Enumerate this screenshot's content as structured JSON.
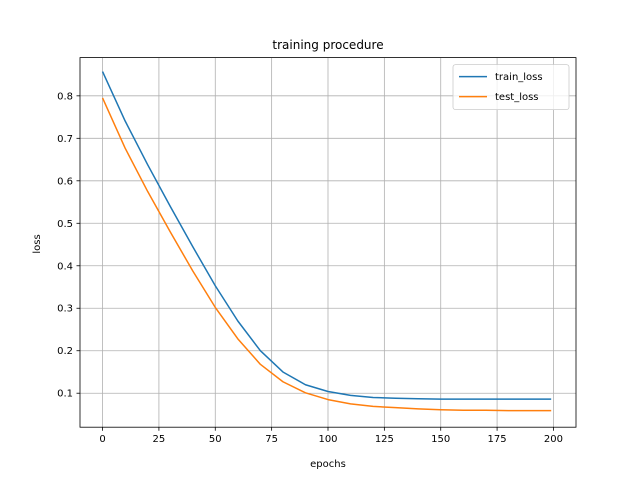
{
  "chart_data": {
    "type": "line",
    "title": "training procedure",
    "xlabel": "epochs",
    "ylabel": "loss",
    "xlim": [
      -10,
      210
    ],
    "ylim": [
      0.02,
      0.89
    ],
    "x_ticks": [
      0,
      25,
      50,
      75,
      100,
      125,
      150,
      175,
      200
    ],
    "y_ticks": [
      0.1,
      0.2,
      0.3,
      0.4,
      0.5,
      0.6,
      0.7,
      0.8
    ],
    "grid": true,
    "legend": "top-right",
    "x": [
      0,
      10,
      20,
      30,
      40,
      50,
      60,
      70,
      80,
      90,
      100,
      110,
      120,
      130,
      140,
      150,
      160,
      170,
      180,
      190,
      199
    ],
    "series": [
      {
        "name": "train_loss",
        "color": "#1f77b4",
        "values": [
          0.857,
          0.741,
          0.638,
          0.54,
          0.445,
          0.353,
          0.27,
          0.2,
          0.15,
          0.12,
          0.104,
          0.095,
          0.09,
          0.088,
          0.087,
          0.086,
          0.086,
          0.086,
          0.086,
          0.086,
          0.086
        ]
      },
      {
        "name": "test_loss",
        "color": "#ff7f0e",
        "values": [
          0.795,
          0.677,
          0.575,
          0.48,
          0.388,
          0.302,
          0.228,
          0.168,
          0.127,
          0.101,
          0.085,
          0.075,
          0.069,
          0.066,
          0.063,
          0.061,
          0.06,
          0.06,
          0.059,
          0.059,
          0.059
        ]
      }
    ]
  }
}
